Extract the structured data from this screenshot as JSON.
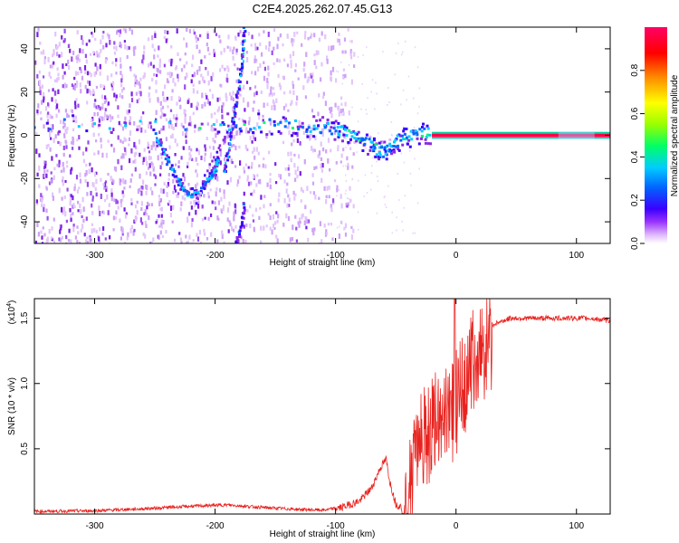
{
  "title": "C2E4.2025.262.07.45.G13",
  "chart_data": [
    {
      "type": "heatmap",
      "name": "spectrogram",
      "xlabel": "Height of straight line (km)",
      "ylabel": "Frequency (Hz)",
      "xlim": [
        -350,
        128
      ],
      "ylim": [
        -50,
        50
      ],
      "xticks": [
        -300,
        -200,
        -100,
        0,
        100
      ],
      "yticks": [
        -40,
        -20,
        0,
        20,
        40
      ],
      "colorbar": {
        "label": "Normalized spectral amplitude",
        "range": [
          0,
          1
        ],
        "ticks": [
          0.0,
          0.2,
          0.4,
          0.6,
          0.8
        ],
        "tick_labels": [
          "0.0",
          "0.2",
          "0.4",
          "0.6",
          "0.8"
        ],
        "colormap": [
          "#ffffff",
          "#e0b8ff",
          "#8a2be2",
          "#3a00ff",
          "#0066ff",
          "#00ccff",
          "#00ff66",
          "#99ff00",
          "#ffff00",
          "#ff8800",
          "#ff0000",
          "#ff0066"
        ]
      },
      "features": [
        {
          "name": "main-carrier-track",
          "points": [
            [
              -350,
              5
            ],
            [
              -200,
              5
            ],
            [
              -150,
              5
            ],
            [
              -120,
              4
            ],
            [
              -100,
              3
            ],
            [
              -85,
              0
            ],
            [
              -70,
              -5
            ],
            [
              -60,
              -8
            ],
            [
              -50,
              -3
            ],
            [
              -35,
              0
            ],
            [
              -20,
              1
            ],
            [
              -15,
              3
            ],
            [
              -10,
              1
            ],
            [
              0,
              0
            ],
            [
              128,
              0
            ]
          ]
        },
        {
          "name": "dip-curve",
          "points": [
            [
              -250,
              0
            ],
            [
              -240,
              -10
            ],
            [
              -230,
              -22
            ],
            [
              -222,
              -28
            ],
            [
              -212,
              -26
            ],
            [
              -205,
              -20
            ],
            [
              -200,
              -17
            ],
            [
              -197,
              -10
            ]
          ]
        },
        {
          "name": "steep-line-upper",
          "points": [
            [
              -192,
              -17
            ],
            [
              -185,
              5
            ],
            [
              -178,
              30
            ],
            [
              -175,
              50
            ]
          ]
        },
        {
          "name": "steep-line-lower",
          "points": [
            [
              -182,
              -50
            ],
            [
              -178,
              -42
            ],
            [
              -175,
              -30
            ]
          ]
        },
        {
          "name": "loose-diagonal",
          "points": [
            [
              -215,
              -30
            ],
            [
              -200,
              -10
            ],
            [
              -190,
              0
            ],
            [
              -178,
              22
            ]
          ]
        }
      ],
      "noise_x_range": [
        -350,
        -100
      ],
      "carrier_onset_x": -20
    },
    {
      "type": "line",
      "name": "snr",
      "xlabel": "Height of straight line (km)",
      "ylabel": "SNR (10 * v/v)",
      "scale_label_base": "(x10",
      "scale_label_exp": "4",
      "scale_label_close": ")",
      "xlim": [
        -350,
        128
      ],
      "ylim": [
        0,
        1.65
      ],
      "xticks": [
        -300,
        -200,
        -100,
        0,
        100
      ],
      "yticks": [
        0.5,
        1.0,
        1.5
      ],
      "ytick_labels": [
        "0.5",
        "1.0",
        "1.5"
      ],
      "color": "#e8231f",
      "envelope": [
        [
          -350,
          0.02
        ],
        [
          -300,
          0.025
        ],
        [
          -260,
          0.04
        ],
        [
          -220,
          0.06
        ],
        [
          -190,
          0.07
        ],
        [
          -160,
          0.05
        ],
        [
          -130,
          0.035
        ],
        [
          -110,
          0.03
        ],
        [
          -95,
          0.05
        ],
        [
          -80,
          0.1
        ],
        [
          -70,
          0.2
        ],
        [
          -63,
          0.35
        ],
        [
          -58,
          0.42
        ],
        [
          -55,
          0.25
        ],
        [
          -50,
          0.08
        ],
        [
          -45,
          0.05
        ],
        [
          -40,
          0.2
        ],
        [
          -35,
          0.5
        ],
        [
          -30,
          0.7
        ],
        [
          -20,
          0.75
        ],
        [
          -12,
          0.85
        ],
        [
          -5,
          0.9
        ],
        [
          0,
          0.95
        ],
        [
          5,
          1.1
        ],
        [
          10,
          1.2
        ],
        [
          20,
          1.35
        ],
        [
          30,
          1.45
        ],
        [
          45,
          1.5
        ],
        [
          80,
          1.5
        ],
        [
          110,
          1.5
        ],
        [
          128,
          1.48
        ]
      ],
      "spike": {
        "x": -1,
        "y": 1.65
      }
    }
  ]
}
